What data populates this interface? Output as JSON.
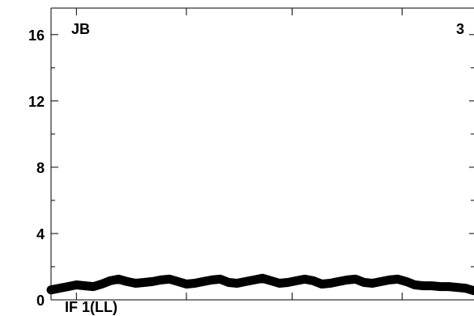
{
  "chart_data": {
    "type": "line",
    "title": "",
    "xlabel": "",
    "ylabel": "",
    "ylim": [
      0,
      17.6
    ],
    "yticks_major": [
      0,
      4,
      8,
      12,
      16
    ],
    "yticks_minor": [
      2,
      6,
      10,
      14
    ],
    "y_tick_labels": [
      "0",
      "4",
      "8",
      "12",
      "16"
    ],
    "grid": false,
    "annotations": {
      "top_left": "JB",
      "top_right": "3",
      "bottom_left": "IF 1(LL)"
    },
    "series": [
      {
        "color": "#000000",
        "x": [
          0.0,
          0.02,
          0.04,
          0.06,
          0.08,
          0.1,
          0.12,
          0.14,
          0.16,
          0.18,
          0.2,
          0.22,
          0.24,
          0.26,
          0.28,
          0.3,
          0.32,
          0.34,
          0.36,
          0.38,
          0.4,
          0.42,
          0.44,
          0.46,
          0.48,
          0.5,
          0.52,
          0.54,
          0.56,
          0.58,
          0.6,
          0.62,
          0.64,
          0.66,
          0.68,
          0.7,
          0.72,
          0.74,
          0.76,
          0.78,
          0.8,
          0.82,
          0.84,
          0.86,
          0.88,
          0.9,
          0.92,
          0.94,
          0.96,
          0.98,
          1.0
        ],
        "values": [
          0.6,
          0.7,
          0.8,
          0.9,
          0.85,
          0.8,
          0.95,
          1.15,
          1.25,
          1.1,
          1.0,
          1.05,
          1.1,
          1.2,
          1.25,
          1.1,
          0.95,
          1.0,
          1.1,
          1.2,
          1.25,
          1.05,
          1.0,
          1.1,
          1.2,
          1.3,
          1.15,
          1.0,
          1.05,
          1.15,
          1.25,
          1.15,
          0.95,
          1.0,
          1.1,
          1.2,
          1.25,
          1.05,
          1.0,
          1.1,
          1.2,
          1.25,
          1.1,
          0.9,
          0.85,
          0.85,
          0.8,
          0.8,
          0.75,
          0.7,
          0.55
        ]
      }
    ]
  }
}
